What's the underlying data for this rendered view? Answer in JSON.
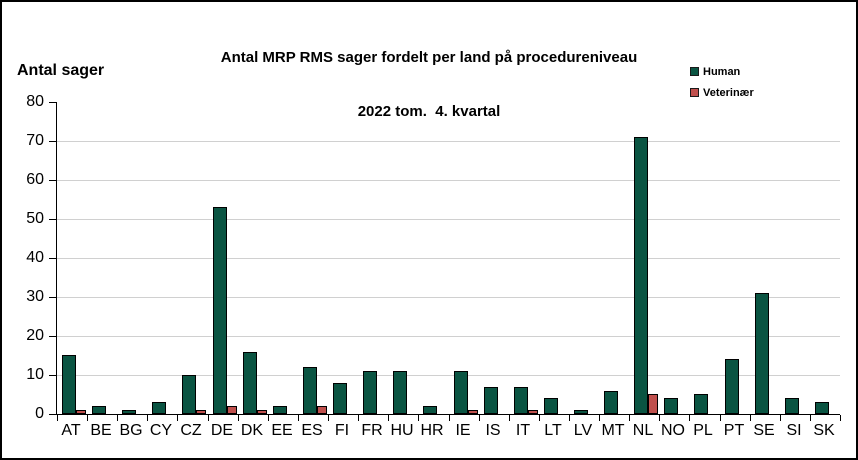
{
  "chart_data": {
    "type": "bar",
    "title": "Antal MRP RMS sager fordelt per land på procedureniveau",
    "subtitle": "2022 tom.  4. kvartal",
    "y_axis_title": "Antal sager",
    "categories": [
      "AT",
      "BE",
      "BG",
      "CY",
      "CZ",
      "DE",
      "DK",
      "EE",
      "ES",
      "FI",
      "FR",
      "HU",
      "HR",
      "IE",
      "IS",
      "IT",
      "LT",
      "LV",
      "MT",
      "NL",
      "NO",
      "PL",
      "PT",
      "SE",
      "SI",
      "SK"
    ],
    "series": [
      {
        "name": "Human",
        "color": "#0A5442",
        "values": [
          15,
          2,
          1,
          3,
          10,
          53,
          16,
          2,
          12,
          8,
          11,
          11,
          2,
          11,
          7,
          7,
          4,
          1,
          6,
          71,
          4,
          5,
          14,
          31,
          4,
          3
        ]
      },
      {
        "name": "Veterinær",
        "color": "#C0504D",
        "values": [
          1,
          0,
          0,
          0,
          1,
          2,
          1,
          0,
          2,
          0,
          0,
          0,
          0,
          1,
          0,
          1,
          0,
          0,
          0,
          5,
          0,
          0,
          0,
          0,
          0,
          0
        ]
      }
    ],
    "ylim": [
      0,
      80
    ],
    "ytick_step": 10,
    "grid": true,
    "gridline_color": "#D0D0D0",
    "axis_color": "#000000",
    "legend_position": "top-right",
    "background_color": "#FFFFFF",
    "border_color": "#000000"
  }
}
